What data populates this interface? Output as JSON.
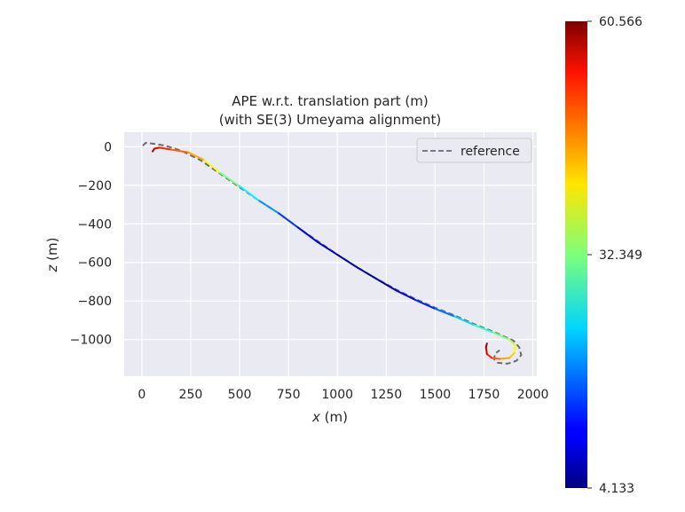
{
  "chart_data": {
    "type": "line",
    "title": "APE w.r.t. translation part (m)",
    "subtitle": "(with SE(3) Umeyama alignment)",
    "xlabel_var": "x",
    "xlabel_unit": " (m)",
    "ylabel_var": "z",
    "ylabel_unit": " (m)",
    "xlim": [
      -90,
      2020
    ],
    "ylim": [
      -1190,
      75
    ],
    "xticks": [
      0,
      250,
      500,
      750,
      1000,
      1250,
      1500,
      1750,
      2000
    ],
    "yticks": [
      0,
      -200,
      -400,
      -600,
      -800,
      -1000
    ],
    "xtick_labels": [
      "0",
      "250",
      "500",
      "750",
      "1000",
      "1250",
      "1500",
      "1750",
      "2000"
    ],
    "ytick_labels": [
      "0",
      "−200",
      "−400",
      "−600",
      "−800",
      "−1000"
    ],
    "grid": true,
    "legend": {
      "entries": [
        "reference"
      ],
      "placement": "top-right"
    },
    "colorbar": {
      "colormap": "jet",
      "min": 4.133,
      "max": 60.566,
      "tick_values": [
        4.133,
        32.349,
        60.566
      ],
      "tick_labels": [
        "4.133",
        "32.349",
        "60.566"
      ]
    },
    "series": [
      {
        "role": "reference",
        "style": "dashed",
        "color": "#6b6b78",
        "points": [
          [
            5,
            5
          ],
          [
            20,
            20
          ],
          [
            60,
            15
          ],
          [
            120,
            5
          ],
          [
            200,
            -20
          ],
          [
            300,
            -70
          ],
          [
            400,
            -140
          ],
          [
            500,
            -210
          ],
          [
            600,
            -280
          ],
          [
            700,
            -345
          ],
          [
            800,
            -420
          ],
          [
            900,
            -490
          ],
          [
            1000,
            -560
          ],
          [
            1100,
            -625
          ],
          [
            1200,
            -685
          ],
          [
            1300,
            -740
          ],
          [
            1400,
            -790
          ],
          [
            1500,
            -835
          ],
          [
            1600,
            -875
          ],
          [
            1700,
            -920
          ],
          [
            1800,
            -960
          ],
          [
            1900,
            -1005
          ],
          [
            1930,
            -1040
          ],
          [
            1940,
            -1080
          ],
          [
            1915,
            -1110
          ],
          [
            1870,
            -1125
          ],
          [
            1820,
            -1120
          ],
          [
            1800,
            -1100
          ],
          [
            1810,
            -1070
          ],
          [
            1830,
            -1055
          ]
        ]
      },
      {
        "role": "estimate",
        "style": "solid",
        "points": [
          [
            55,
            -25
          ],
          [
            65,
            -10
          ],
          [
            90,
            -5
          ],
          [
            150,
            -15
          ],
          [
            240,
            -30
          ],
          [
            320,
            -70
          ],
          [
            400,
            -135
          ],
          [
            500,
            -205
          ],
          [
            600,
            -280
          ],
          [
            700,
            -345
          ],
          [
            800,
            -420
          ],
          [
            900,
            -495
          ],
          [
            1000,
            -560
          ],
          [
            1100,
            -625
          ],
          [
            1200,
            -685
          ],
          [
            1300,
            -745
          ],
          [
            1400,
            -795
          ],
          [
            1500,
            -840
          ],
          [
            1600,
            -880
          ],
          [
            1700,
            -925
          ],
          [
            1800,
            -965
          ],
          [
            1880,
            -1000
          ],
          [
            1910,
            -1030
          ],
          [
            1905,
            -1070
          ],
          [
            1880,
            -1095
          ],
          [
            1830,
            -1100
          ],
          [
            1790,
            -1095
          ],
          [
            1765,
            -1075
          ],
          [
            1760,
            -1040
          ],
          [
            1765,
            -1020
          ]
        ],
        "ape": [
          58,
          56,
          54,
          50,
          46,
          42,
          36,
          28,
          22,
          17,
          12,
          9,
          7,
          6,
          6,
          8,
          11,
          15,
          20,
          26,
          30,
          34,
          38,
          41,
          43,
          46,
          50,
          54,
          57,
          60
        ]
      }
    ]
  }
}
